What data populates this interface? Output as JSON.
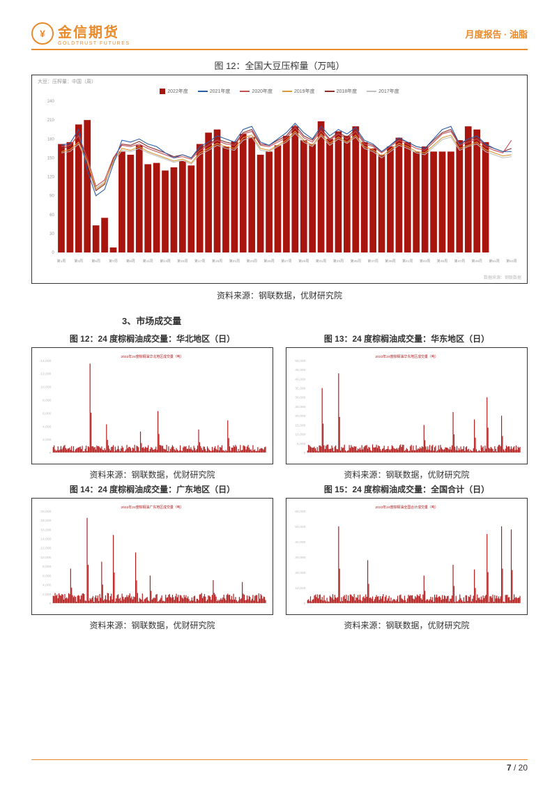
{
  "header": {
    "logo_cn": "金信期货",
    "logo_en": "GOLDTRUST FUTURES",
    "right": "月度报告 · 油脂"
  },
  "main_chart": {
    "title": "图 12：全国大豆压榨量（万吨）",
    "subtitle": "大豆：压榨量：中国（周）",
    "source_br": "数据来源：钢联数据",
    "source": "资料来源：钢联数据，优财研究院",
    "legend": [
      {
        "label": "2022年度",
        "type": "sq",
        "color": "#a8140e"
      },
      {
        "label": "2021年度",
        "type": "line",
        "color": "#2b5ea8"
      },
      {
        "label": "2020年度",
        "type": "line",
        "color": "#c44e56"
      },
      {
        "label": "2019年度",
        "type": "line",
        "color": "#d89a3a"
      },
      {
        "label": "2018年度",
        "type": "line",
        "color": "#8d2d2d"
      },
      {
        "label": "2017年度",
        "type": "line",
        "color": "#bfbfbf"
      }
    ],
    "ylim": [
      0,
      240
    ],
    "ytick_step": 30,
    "y_ticks": [
      0,
      30,
      60,
      90,
      120,
      150,
      180,
      210,
      240
    ],
    "x_labels": [
      "第1周",
      "第3周",
      "第5周",
      "第7周",
      "第9周",
      "第11周",
      "第13周",
      "第15周",
      "第17周",
      "第19周",
      "第21周",
      "第23周",
      "第25周",
      "第27周",
      "第29周",
      "第31周",
      "第33周",
      "第35周",
      "第37周",
      "第39周",
      "第41周",
      "第43周",
      "第45周",
      "第47周",
      "第49周",
      "第51周",
      "第53周"
    ],
    "bars_2022": [
      172,
      175,
      203,
      210,
      43,
      55,
      8,
      160,
      155,
      170,
      140,
      142,
      130,
      135,
      145,
      138,
      172,
      190,
      195,
      168,
      176,
      188,
      183,
      155,
      160,
      170,
      185,
      200,
      178,
      172,
      208,
      180,
      192,
      185,
      200,
      175,
      165,
      155,
      168,
      182,
      175,
      160,
      168,
      160,
      160,
      160,
      178,
      200,
      195,
      175,
      null,
      null,
      null
    ],
    "bar_color": "#a8140e",
    "lines": {
      "2021": {
        "color": "#2b5ea8",
        "values": [
          170,
          173,
          195,
          130,
          90,
          100,
          140,
          178,
          175,
          180,
          172,
          168,
          158,
          150,
          155,
          150,
          168,
          175,
          185,
          180,
          175,
          195,
          200,
          175,
          170,
          180,
          190,
          205,
          190,
          180,
          200,
          185,
          195,
          188,
          198,
          178,
          172,
          160,
          170,
          182,
          175,
          168,
          165,
          180,
          195,
          200,
          172,
          180,
          185,
          172,
          165,
          160,
          160
        ]
      },
      "2020": {
        "color": "#c44e56",
        "values": [
          168,
          170,
          185,
          150,
          105,
          115,
          150,
          170,
          168,
          172,
          165,
          160,
          155,
          150,
          152,
          148,
          162,
          170,
          178,
          172,
          170,
          188,
          192,
          170,
          168,
          175,
          182,
          198,
          182,
          175,
          193,
          178,
          188,
          180,
          192,
          172,
          168,
          158,
          168,
          178,
          172,
          165,
          162,
          175,
          188,
          192,
          170,
          175,
          180,
          168,
          162,
          158,
          178
        ]
      },
      "2019": {
        "color": "#d89a3a",
        "values": [
          160,
          163,
          175,
          145,
          100,
          110,
          145,
          165,
          162,
          168,
          160,
          155,
          150,
          145,
          148,
          142,
          158,
          165,
          173,
          168,
          165,
          182,
          186,
          165,
          162,
          170,
          178,
          192,
          178,
          170,
          188,
          173,
          183,
          175,
          186,
          168,
          163,
          153,
          163,
          173,
          168,
          160,
          158,
          170,
          182,
          186,
          165,
          170,
          175,
          163,
          158,
          153,
          155
        ]
      },
      "2018": {
        "color": "#8d2d2d",
        "values": [
          165,
          168,
          188,
          140,
          98,
          108,
          148,
          172,
          170,
          176,
          168,
          163,
          158,
          152,
          155,
          150,
          165,
          172,
          180,
          175,
          172,
          190,
          195,
          172,
          170,
          178,
          185,
          202,
          185,
          178,
          196,
          180,
          190,
          183,
          195,
          175,
          170,
          160,
          170,
          180,
          175,
          168,
          165,
          178,
          190,
          195,
          172,
          178,
          183,
          170,
          165,
          160,
          165
        ]
      },
      "2017": {
        "color": "#bfbfbf",
        "values": [
          158,
          160,
          172,
          142,
          102,
          112,
          143,
          162,
          160,
          165,
          158,
          153,
          148,
          143,
          146,
          140,
          155,
          162,
          170,
          165,
          162,
          178,
          183,
          162,
          160,
          168,
          175,
          189,
          175,
          168,
          185,
          170,
          180,
          173,
          183,
          165,
          160,
          150,
          160,
          170,
          165,
          158,
          155,
          167,
          179,
          183,
          162,
          168,
          172,
          160,
          155,
          150,
          152
        ]
      }
    }
  },
  "section3": {
    "heading": "3、市场成交量"
  },
  "small_charts": {
    "c1": {
      "title": "图 12：24 度棕榈油成交量：华北地区（日）",
      "legend": "2022年24度棕榈油华北地区成交量（吨）",
      "source": "资料来源：钢联数据，优财研究院",
      "ymax": 14000,
      "ytick": 2000,
      "color": "#b31919",
      "n": 220,
      "spikes": [
        {
          "i": 38,
          "v": 13500
        },
        {
          "i": 55,
          "v": 4300
        },
        {
          "i": 90,
          "v": 3200
        },
        {
          "i": 108,
          "v": 6300
        },
        {
          "i": 150,
          "v": 3500
        },
        {
          "i": 180,
          "v": 4900
        }
      ],
      "base": 800
    },
    "c2": {
      "title": "图 13：24 度棕榈油成交量：华东地区（日）",
      "legend": "2022年24度棕榈油华东地区成交量（吨）",
      "source": "资料来源：钢联数据，优财研究院",
      "ymax": 50000,
      "ytick": 5000,
      "color": "#b31919",
      "n": 220,
      "spikes": [
        {
          "i": 15,
          "v": 35000
        },
        {
          "i": 32,
          "v": 43000
        },
        {
          "i": 120,
          "v": 15000
        },
        {
          "i": 150,
          "v": 22000
        },
        {
          "i": 172,
          "v": 18000
        },
        {
          "i": 185,
          "v": 30000
        },
        {
          "i": 200,
          "v": 20000
        }
      ],
      "base": 3000
    },
    "c3": {
      "title": "图 14：24 度棕榈油成交量：广东地区（日）",
      "legend": "2022年24度棕榈油广东地区成交量（吨）",
      "source": "资料来源：钢联数据，优财研究院",
      "ymax": 20000,
      "ytick": 2000,
      "color": "#b31919",
      "n": 220,
      "spikes": [
        {
          "i": 18,
          "v": 7500
        },
        {
          "i": 35,
          "v": 18500
        },
        {
          "i": 50,
          "v": 9000
        },
        {
          "i": 62,
          "v": 14800
        },
        {
          "i": 85,
          "v": 11000
        },
        {
          "i": 100,
          "v": 6000
        },
        {
          "i": 165,
          "v": 5000
        },
        {
          "i": 195,
          "v": 4600
        }
      ],
      "base": 1500
    },
    "c4": {
      "title": "图 15：24 度棕榈油成交量：全国合计（日）",
      "legend": "2022年24度棕榈油全国合计成交量（吨）",
      "source": "资料来源：钢联数据，优财研究院",
      "ymax": 60000,
      "ytick": 10000,
      "color": "#b31919",
      "n": 220,
      "spikes": [
        {
          "i": 32,
          "v": 50000
        },
        {
          "i": 62,
          "v": 28000
        },
        {
          "i": 120,
          "v": 18000
        },
        {
          "i": 150,
          "v": 25000
        },
        {
          "i": 172,
          "v": 22000
        },
        {
          "i": 185,
          "v": 45000
        },
        {
          "i": 200,
          "v": 50000
        },
        {
          "i": 210,
          "v": 48000
        }
      ],
      "base": 4000
    }
  },
  "footer": {
    "page": "7",
    "total": "20"
  }
}
